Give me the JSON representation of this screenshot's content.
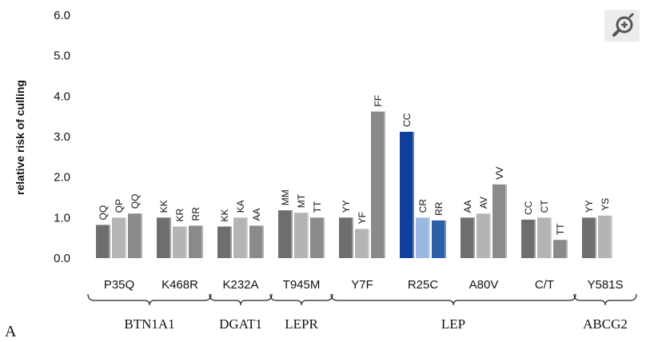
{
  "chart_data": {
    "type": "bar",
    "ylabel": "relative risk of culling",
    "ylim": [
      0,
      6
    ],
    "yticks": [
      "0.0",
      "1.0",
      "2.0",
      "3.0",
      "4.0",
      "5.0",
      "6.0"
    ],
    "grid": false,
    "categories": [
      {
        "name": "P35Q",
        "bars": [
          {
            "label": "QQ",
            "value": 0.82,
            "color": "#6e6e6e"
          },
          {
            "label": "QP",
            "value": 1.0,
            "color": "#b4b4b4"
          },
          {
            "label": "QQ",
            "value": 1.1,
            "color": "#8a8a8a"
          }
        ]
      },
      {
        "name": "K468R",
        "bars": [
          {
            "label": "KK",
            "value": 1.0,
            "color": "#6e6e6e"
          },
          {
            "label": "KR",
            "value": 0.78,
            "color": "#b4b4b4"
          },
          {
            "label": "RR",
            "value": 0.8,
            "color": "#8a8a8a"
          }
        ]
      },
      {
        "name": "K232A",
        "bars": [
          {
            "label": "KK",
            "value": 0.78,
            "color": "#6e6e6e"
          },
          {
            "label": "KA",
            "value": 1.0,
            "color": "#b4b4b4"
          },
          {
            "label": "AA",
            "value": 0.8,
            "color": "#8a8a8a"
          }
        ]
      },
      {
        "name": "T945M",
        "bars": [
          {
            "label": "MM",
            "value": 1.18,
            "color": "#6e6e6e"
          },
          {
            "label": "MT",
            "value": 1.12,
            "color": "#b4b4b4"
          },
          {
            "label": "TT",
            "value": 1.0,
            "color": "#8a8a8a"
          }
        ]
      },
      {
        "name": "Y7F",
        "bars": [
          {
            "label": "YY",
            "value": 1.0,
            "color": "#6e6e6e"
          },
          {
            "label": "YF",
            "value": 0.72,
            "color": "#b4b4b4"
          },
          {
            "label": "FF",
            "value": 3.62,
            "color": "#8a8a8a"
          }
        ]
      },
      {
        "name": "R25C",
        "bars": [
          {
            "label": "CC",
            "value": 3.12,
            "color": "#0f3f9c"
          },
          {
            "label": "CR",
            "value": 1.0,
            "color": "#9bb8e3"
          },
          {
            "label": "RR",
            "value": 0.93,
            "color": "#2f5ea8"
          }
        ]
      },
      {
        "name": "A80V",
        "bars": [
          {
            "label": "AA",
            "value": 1.0,
            "color": "#6e6e6e"
          },
          {
            "label": "AV",
            "value": 1.1,
            "color": "#b4b4b4"
          },
          {
            "label": "VV",
            "value": 1.82,
            "color": "#8a8a8a"
          }
        ]
      },
      {
        "name": "C/T",
        "bars": [
          {
            "label": "CC",
            "value": 0.95,
            "color": "#6e6e6e"
          },
          {
            "label": "CT",
            "value": 1.0,
            "color": "#b4b4b4"
          },
          {
            "label": "TT",
            "value": 0.45,
            "color": "#8a8a8a"
          }
        ]
      },
      {
        "name": "Y581S",
        "bars": [
          {
            "label": "YY",
            "value": 1.0,
            "color": "#6e6e6e"
          },
          {
            "label": "YS",
            "value": 1.05,
            "color": "#b4b4b4"
          }
        ]
      }
    ],
    "genes": [
      {
        "name": "BTN1A1",
        "from": 0,
        "to": 1
      },
      {
        "name": "DGAT1",
        "from": 2,
        "to": 2
      },
      {
        "name": "LEPR",
        "from": 3,
        "to": 3
      },
      {
        "name": "LEP",
        "from": 4,
        "to": 7
      },
      {
        "name": "ABCG2",
        "from": 8,
        "to": 8
      }
    ],
    "panel_label": "A"
  },
  "zoom_icon": "zoom-in-icon"
}
